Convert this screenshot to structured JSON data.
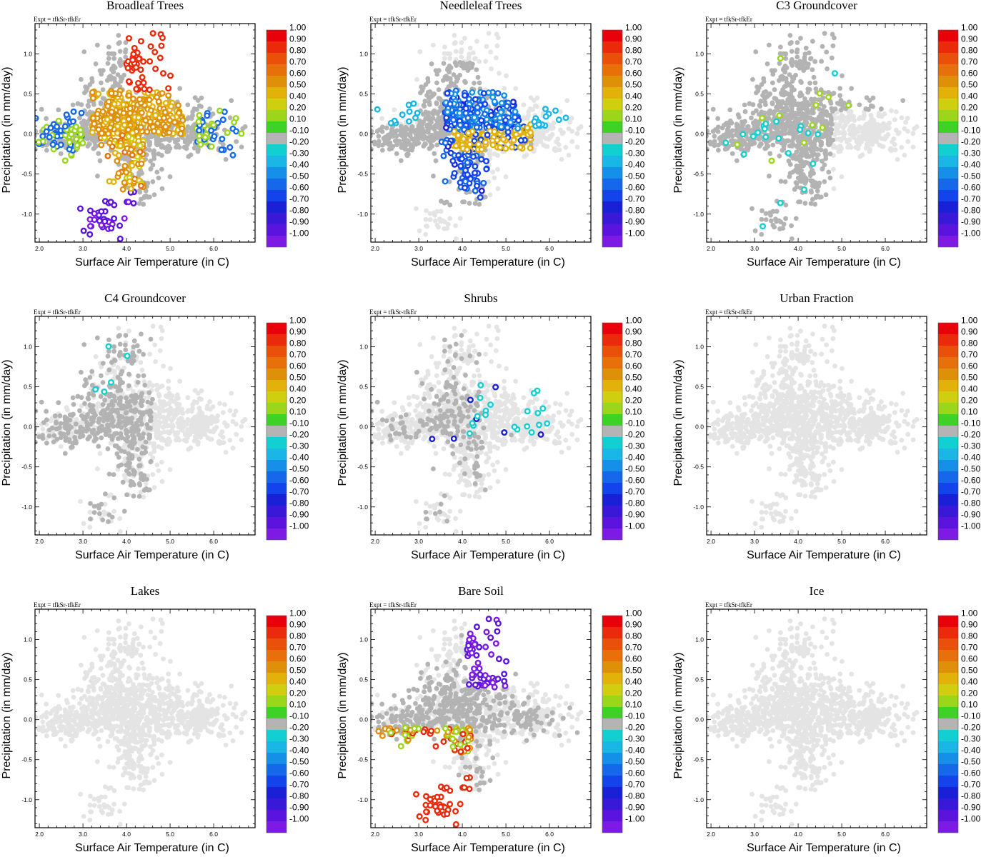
{
  "chart_data": {
    "type": "scatter",
    "layout": "3x3 panel grid",
    "expt_label": "Expt = tfkSr-tfkEr",
    "xlabel": "Surface Air Temperature (in C)",
    "ylabel": "Precipitation (in mm/day)",
    "xlim": [
      1.9,
      6.95
    ],
    "ylim": [
      -1.35,
      1.38
    ],
    "xticks": [
      "2.0",
      "3.0",
      "4.0",
      "5.0",
      "6.0"
    ],
    "yticks": [
      "1.0",
      "0.5",
      "0.0",
      "-0.5",
      "-1.0"
    ],
    "colorbar": {
      "labels": [
        "1.00",
        "0.90",
        "0.80",
        "0.70",
        "0.60",
        "0.50",
        "0.40",
        "0.20",
        "0.10",
        "-0.10",
        "-0.20",
        "-0.30",
        "-0.40",
        "-0.50",
        "-0.60",
        "-0.70",
        "-0.80",
        "-0.90",
        "-1.00"
      ],
      "colors": [
        "#e8000b",
        "#ea2a0a",
        "#e9500a",
        "#e8700a",
        "#de9008",
        "#e2b20a",
        "#cfce0f",
        "#9bd61a",
        "#3ed227",
        "#b4b4b4",
        "#12cfd2",
        "#1ab6e6",
        "#168fe8",
        "#1568ea",
        "#1243eb",
        "#1a20d6",
        "#3a18d8",
        "#5b14dd",
        "#7d1ae3"
      ]
    },
    "grey_point_colors": {
      "significant": "#b3b3b3",
      "background": "#e4e4e4"
    },
    "panels": [
      {
        "title": "Broadleaf Trees",
        "pattern": "broadleaf"
      },
      {
        "title": "Needleleaf Trees",
        "pattern": "needleleaf"
      },
      {
        "title": "C3 Groundcover",
        "pattern": "c3"
      },
      {
        "title": "C4 Groundcover",
        "pattern": "c4"
      },
      {
        "title": "Shrubs",
        "pattern": "shrubs"
      },
      {
        "title": "Urban Fraction",
        "pattern": "empty"
      },
      {
        "title": "Lakes",
        "pattern": "empty"
      },
      {
        "title": "Bare Soil",
        "pattern": "baresoil"
      },
      {
        "title": "Ice",
        "pattern": "empty"
      }
    ]
  }
}
